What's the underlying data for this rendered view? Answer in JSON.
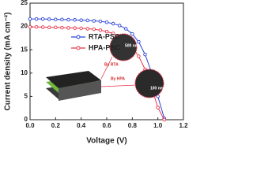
{
  "chart_data": {
    "type": "line",
    "xlabel": "Voltage (V)",
    "ylabel": "Current density (mA cm⁻²)",
    "x": [
      0,
      0.05,
      0.1,
      0.15,
      0.2,
      0.25,
      0.3,
      0.35,
      0.4,
      0.45,
      0.5,
      0.55,
      0.6,
      0.65,
      0.7,
      0.75,
      0.8,
      0.85,
      0.9,
      0.95,
      1.0,
      1.05
    ],
    "series": [
      {
        "name": "RTA-PSC",
        "color": "#2b44d6",
        "values": [
          21.6,
          21.6,
          21.6,
          21.55,
          21.5,
          21.5,
          21.45,
          21.4,
          21.35,
          21.3,
          21.2,
          21.1,
          20.9,
          20.6,
          20.2,
          19.5,
          18.4,
          16.7,
          14.0,
          10.2,
          5.0,
          0.3
        ]
      },
      {
        "name": "HPA-PSC",
        "color": "#e8344a",
        "values": [
          19.9,
          19.9,
          19.85,
          19.8,
          19.8,
          19.75,
          19.7,
          19.65,
          19.6,
          19.5,
          19.4,
          19.2,
          18.9,
          18.5,
          17.8,
          16.9,
          15.6,
          13.6,
          10.8,
          7.0,
          2.6,
          0
        ]
      }
    ],
    "xlim": [
      0,
      1.2
    ],
    "xticks": [
      {
        "value": 0,
        "label": "0.0"
      },
      {
        "value": 0.2,
        "label": "0.2"
      },
      {
        "value": 0.4,
        "label": "0.4"
      },
      {
        "value": 0.6,
        "label": "0.6"
      },
      {
        "value": 0.8,
        "label": "0.8"
      },
      {
        "value": 1,
        "label": "1.0"
      },
      {
        "value": 1.2,
        "label": "1.2"
      }
    ],
    "ylim": [
      0,
      25
    ],
    "yticks": [
      0,
      5,
      10,
      15,
      20,
      25
    ],
    "legend_loc": "upper center",
    "annotations": [
      "By RTA",
      "By HPA",
      "500 nm",
      "100 nm"
    ]
  }
}
